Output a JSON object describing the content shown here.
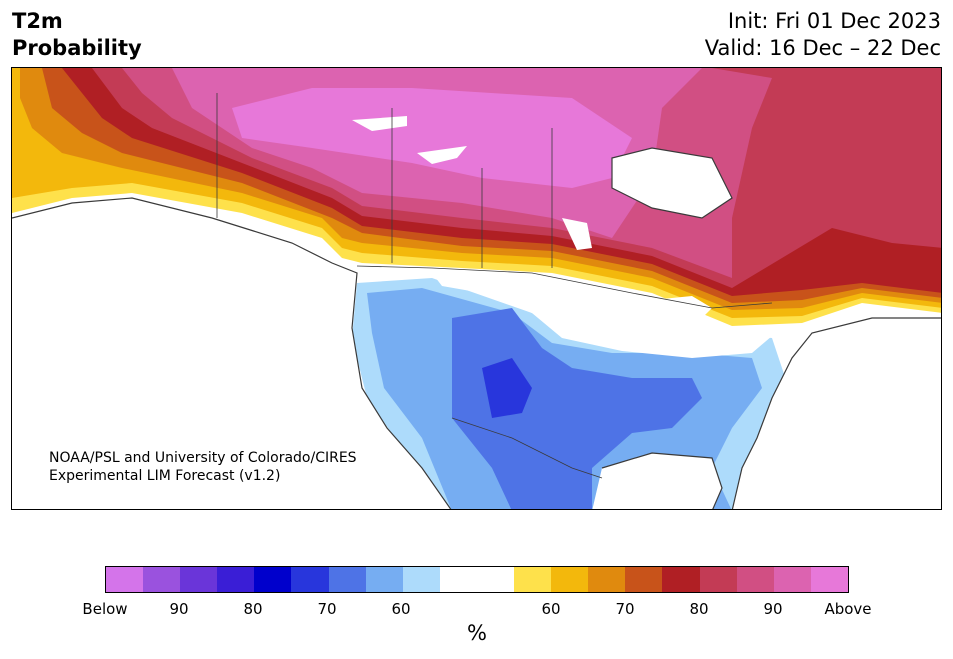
{
  "header": {
    "variable": "T2m",
    "subtitle": "Probability",
    "init": "Init: Fri 01 Dec 2023",
    "valid": "Valid: 16 Dec – 22 Dec"
  },
  "credit": {
    "line1": "NOAA/PSL and University of Colorado/CIRES",
    "line2": "Experimental LIM Forecast (v1.2)"
  },
  "colorbar": {
    "below_colors": [
      "#d474ea",
      "#9a52de",
      "#6a35d9",
      "#3a1ed6",
      "#0000cc",
      "#2836dc",
      "#4e73e6",
      "#76adf2",
      "#addbfb"
    ],
    "above_colors": [
      "#fee14b",
      "#f3b80c",
      "#e08a0e",
      "#c8531a",
      "#b01f24",
      "#c33b55",
      "#d14f83",
      "#dc63b0",
      "#e778d9"
    ],
    "labels": [
      "Below",
      "90",
      "80",
      "70",
      "60",
      "60",
      "70",
      "80",
      "90",
      "Above"
    ],
    "unit": "%"
  }
}
